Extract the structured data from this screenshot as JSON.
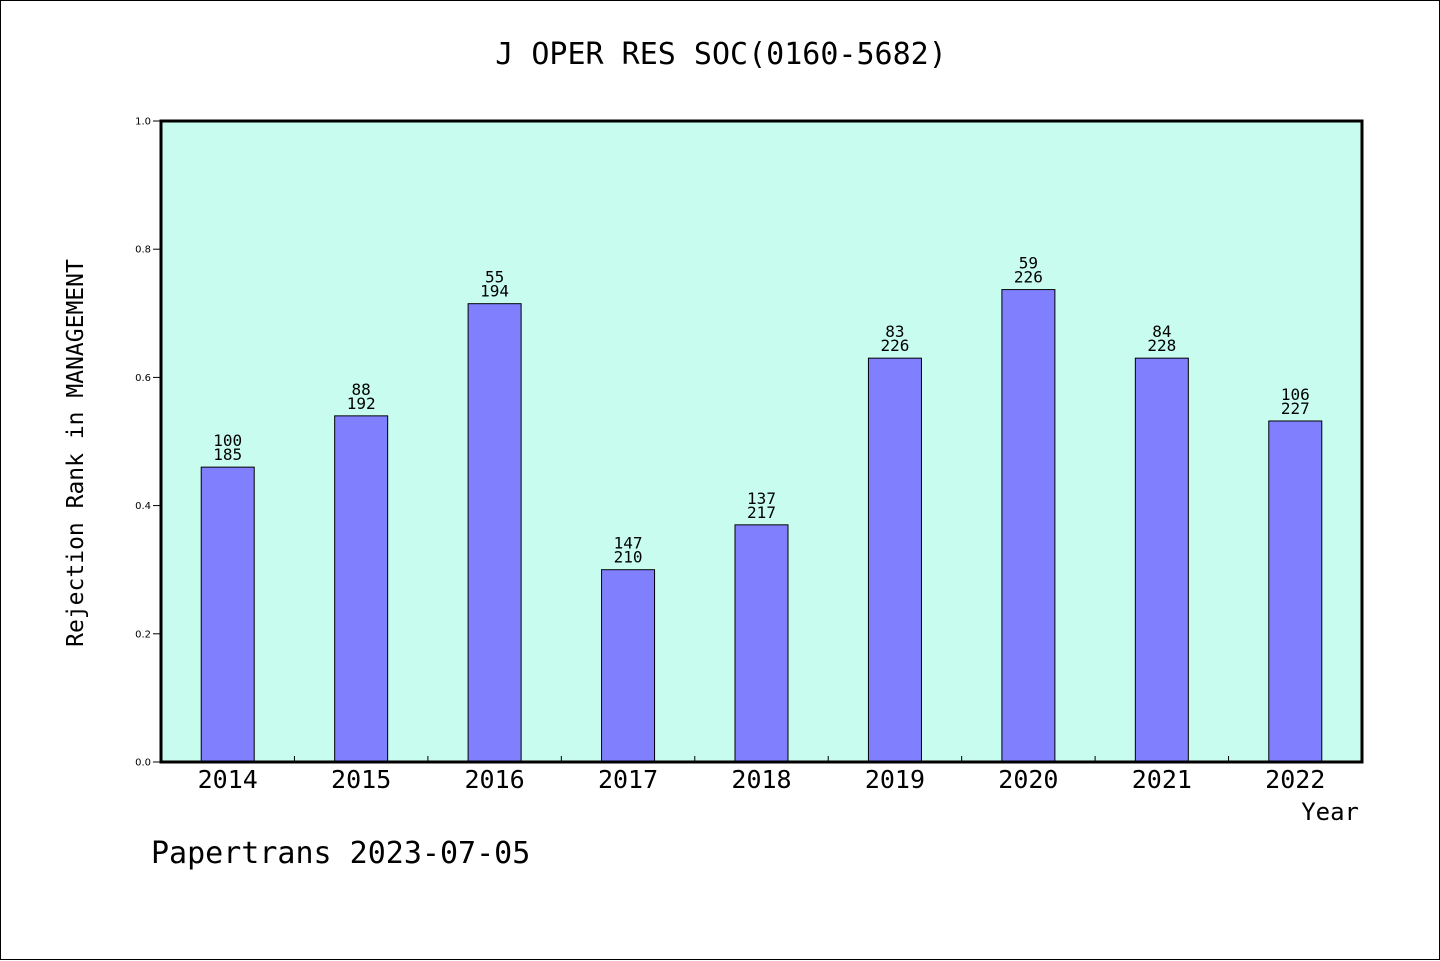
{
  "colors": {
    "plot_bg": "#c8fcee",
    "bar_fill": "#8080ff",
    "bar_stroke": "#000000"
  },
  "chart_data": {
    "type": "bar",
    "title": "J OPER RES SOC(0160-5682)",
    "xlabel": "Year",
    "ylabel": "Rejection Rank in MANAGEMENT",
    "footer": "Papertrans 2023-07-05",
    "categories": [
      "2014",
      "2015",
      "2016",
      "2017",
      "2018",
      "2019",
      "2020",
      "2021",
      "2022"
    ],
    "values": [
      0.46,
      0.54,
      0.715,
      0.3,
      0.37,
      0.63,
      0.737,
      0.63,
      0.532
    ],
    "bar_labels_top": [
      "100",
      "88",
      "55",
      "147",
      "137",
      "83",
      "59",
      "84",
      "106"
    ],
    "bar_labels_bottom": [
      "185",
      "192",
      "194",
      "210",
      "217",
      "226",
      "226",
      "228",
      "227"
    ],
    "ylim": [
      0,
      1.0
    ],
    "yticks": [
      "0.0",
      "0.2",
      "0.4",
      "0.6",
      "0.8",
      "1.0"
    ],
    "grid": false,
    "legend": "none"
  }
}
